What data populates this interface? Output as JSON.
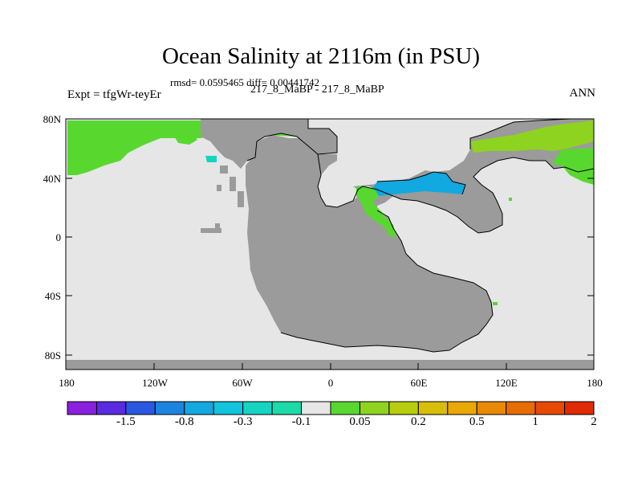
{
  "title": "Ocean Salinity at 2116m (in PSU)",
  "stats": "rmsd= 0.0595465 diff= 0.00441742",
  "expt_label": "Expt = tfgWr-teyEr",
  "cases_label": "217_8_MaBP - 217_8_MaBP",
  "season": "ANN",
  "lat_labels": [
    "80N",
    "40N",
    "0",
    "40S",
    "80S"
  ],
  "lon_labels": [
    "180",
    "120W",
    "60W",
    "0",
    "60E",
    "120E",
    "180"
  ],
  "colorbar": {
    "colors": [
      "#8a1fe0",
      "#5a2ae0",
      "#2b58e0",
      "#1c84e0",
      "#12a8e0",
      "#11c4dc",
      "#16d4c2",
      "#1cdba6",
      "#e6e6e6",
      "#58d82f",
      "#8ed31f",
      "#b8cc10",
      "#d8be08",
      "#e8a806",
      "#e88a06",
      "#e86c06",
      "#e84a06",
      "#e02a06"
    ],
    "labels": [
      "-1.5",
      "-0.8",
      "-0.3",
      "-0.1",
      "0.05",
      "0.2",
      "0.5",
      "1",
      "2"
    ]
  },
  "map_colors": {
    "land": "#9b9b9b",
    "ocean_neutral": "#e6e6e6",
    "positive_anomaly": "#58d82f",
    "strong_positive": "#8ed31f",
    "negative_anomaly": "#12a8e0",
    "teal_anomaly": "#16d4c2"
  }
}
